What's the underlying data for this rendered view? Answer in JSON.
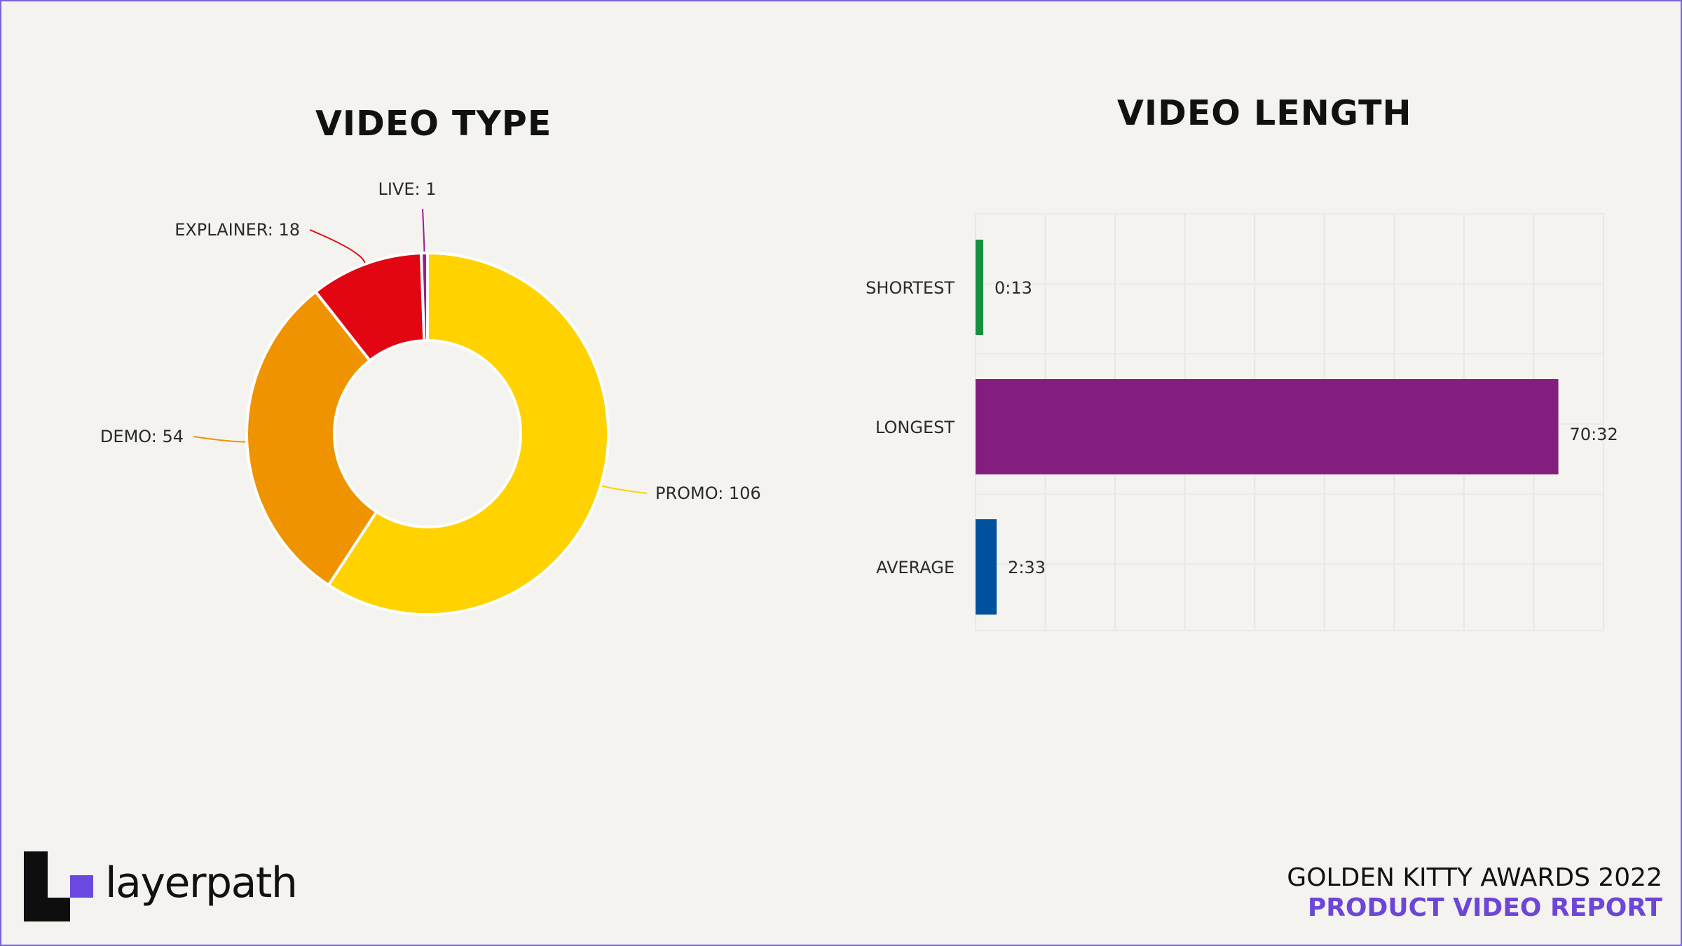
{
  "chart_data": [
    {
      "type": "pie",
      "title": "VIDEO TYPE",
      "slices": [
        {
          "label": "PROMO",
          "value": 106,
          "display": "PROMO: 106",
          "color": "#ffd200"
        },
        {
          "label": "DEMO",
          "value": 54,
          "display": "DEMO: 54",
          "color": "#f09300"
        },
        {
          "label": "EXPLAINER",
          "value": 18,
          "display": "EXPLAINER: 18",
          "color": "#e20613"
        },
        {
          "label": "LIVE",
          "value": 1,
          "display": "LIVE: 1",
          "color": "#9c1d8f"
        }
      ],
      "legend": "none",
      "donut": true
    },
    {
      "type": "bar",
      "orientation": "horizontal",
      "title": "VIDEO LENGTH",
      "categories": [
        "SHORTEST",
        "LONGEST",
        "AVERAGE"
      ],
      "values": [
        0.2167,
        70.5333,
        2.55
      ],
      "value_labels": [
        "0:13",
        "70:32",
        "2:33"
      ],
      "colors": [
        "#17903f",
        "#821e7e",
        "#00519d"
      ],
      "grid": true,
      "xlim": [
        0,
        76
      ]
    }
  ],
  "branding": {
    "logo_text": "layerpath"
  },
  "footer": {
    "line1": "GOLDEN KITTY AWARDS 2022",
    "line2": "PRODUCT VIDEO REPORT"
  }
}
